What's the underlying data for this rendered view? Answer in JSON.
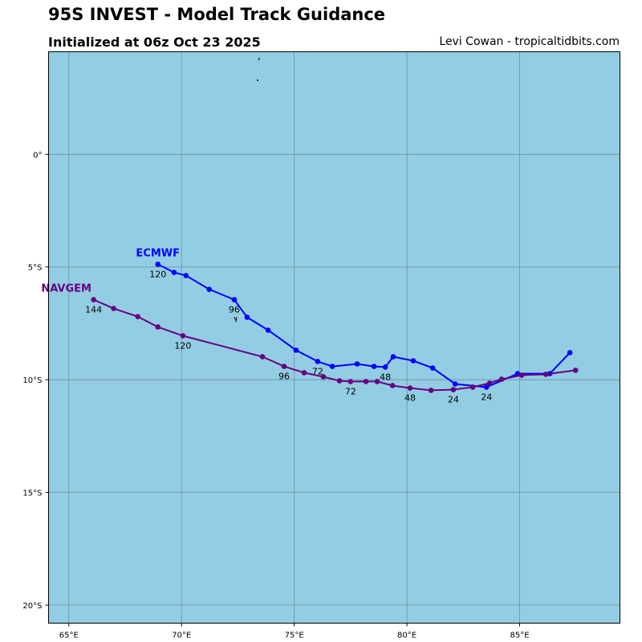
{
  "header": {
    "title": "95S INVEST - Model Track Guidance",
    "subtitle": "Initialized at 06z Oct 23 2025",
    "credit": "Levi Cowan - tropicaltidbits.com"
  },
  "colors": {
    "ocean": "#93cde3",
    "grid": "#6f8fa0"
  },
  "map": {
    "lon_ticks": [
      {
        "v": 65,
        "label": "65°E"
      },
      {
        "v": 70,
        "label": "70°E"
      },
      {
        "v": 75,
        "label": "75°E"
      },
      {
        "v": 80,
        "label": "80°E"
      },
      {
        "v": 85,
        "label": "85°E"
      }
    ],
    "lat_ticks": [
      {
        "v": 0,
        "label": "0°"
      },
      {
        "v": -5,
        "label": "5°S"
      },
      {
        "v": -10,
        "label": "10°S"
      },
      {
        "v": -15,
        "label": "15°S"
      },
      {
        "v": -20,
        "label": "20°S"
      }
    ],
    "lon_range": [
      64.1,
      89.45
    ],
    "lat_range": [
      -20.8,
      4.55
    ]
  },
  "tracks": [
    {
      "name": "ECMWF",
      "color": "#0000ff",
      "points": [
        [
          87.23,
          -8.8
        ],
        [
          86.34,
          -9.73
        ],
        [
          84.91,
          -9.73
        ],
        [
          83.53,
          -10.33
        ],
        [
          82.14,
          -10.19
        ],
        [
          81.14,
          -9.48
        ],
        [
          80.28,
          -9.16
        ],
        [
          79.39,
          -8.98
        ],
        [
          79.04,
          -9.44
        ],
        [
          78.54,
          -9.41
        ],
        [
          77.79,
          -9.3
        ],
        [
          76.69,
          -9.41
        ],
        [
          76.04,
          -9.19
        ],
        [
          75.08,
          -8.69
        ],
        [
          73.84,
          -7.8
        ],
        [
          72.91,
          -7.23
        ],
        [
          72.34,
          -6.45
        ],
        [
          71.23,
          -5.99
        ],
        [
          70.2,
          -5.38
        ],
        [
          69.67,
          -5.24
        ],
        [
          68.95,
          -4.88
        ]
      ],
      "hour_labels": [
        {
          "i": 3,
          "label": "24"
        },
        {
          "i": 8,
          "label": "48"
        },
        {
          "i": 12,
          "label": "72"
        },
        {
          "i": 16,
          "label": "96"
        },
        {
          "i": 20,
          "label": "120"
        }
      ]
    },
    {
      "name": "NAVGEM",
      "color": "#660080",
      "points": [
        [
          87.48,
          -9.58
        ],
        [
          86.16,
          -9.76
        ],
        [
          85.09,
          -9.8
        ],
        [
          84.2,
          -9.98
        ],
        [
          83.67,
          -10.15
        ],
        [
          82.92,
          -10.33
        ],
        [
          82.06,
          -10.44
        ],
        [
          81.07,
          -10.47
        ],
        [
          80.14,
          -10.37
        ],
        [
          79.36,
          -10.26
        ],
        [
          78.68,
          -10.08
        ],
        [
          78.18,
          -10.08
        ],
        [
          77.5,
          -10.08
        ],
        [
          77.01,
          -10.05
        ],
        [
          76.29,
          -9.87
        ],
        [
          75.44,
          -9.69
        ],
        [
          74.55,
          -9.41
        ],
        [
          73.59,
          -8.98
        ],
        [
          70.06,
          -8.05
        ],
        [
          68.95,
          -7.66
        ],
        [
          68.06,
          -7.2
        ],
        [
          66.99,
          -6.84
        ],
        [
          66.1,
          -6.45
        ]
      ],
      "hour_labels": [
        {
          "i": 6,
          "label": "24"
        },
        {
          "i": 8,
          "label": "48"
        },
        {
          "i": 12,
          "label": "72"
        },
        {
          "i": 16,
          "label": "96"
        },
        {
          "i": 18,
          "label": "120"
        },
        {
          "i": 22,
          "label": "144"
        }
      ]
    }
  ]
}
